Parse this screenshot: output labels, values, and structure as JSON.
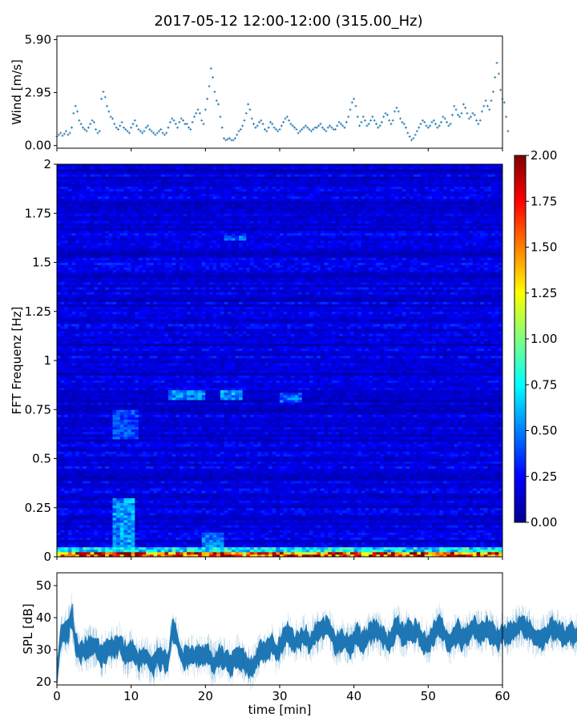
{
  "title": "2017-05-12 12:00-12:00 (315.00_Hz)",
  "colors": {
    "series": "#1f77b4",
    "colormap": "jet"
  },
  "chart_data": [
    {
      "id": "wind",
      "type": "scatter",
      "ylabel": "Wind [m/s]",
      "xlim": [
        0,
        60
      ],
      "ylim": [
        -0.15,
        6.1
      ],
      "yticks": [
        0.0,
        2.95,
        5.9
      ],
      "ytick_labels": [
        "0.00",
        "2.95",
        "5.90"
      ],
      "marker": "+",
      "x_step": 0.25,
      "series": [
        {
          "values": [
            0.5,
            0.6,
            0.7,
            0.55,
            0.65,
            0.8,
            0.6,
            0.7,
            1.0,
            1.8,
            2.2,
            1.9,
            1.4,
            1.2,
            1.0,
            0.9,
            0.8,
            1.0,
            1.2,
            1.4,
            1.3,
            0.9,
            0.7,
            0.8,
            2.6,
            3.0,
            2.7,
            2.2,
            1.9,
            1.6,
            1.5,
            1.2,
            1.0,
            0.9,
            1.1,
            1.3,
            1.0,
            0.9,
            0.8,
            0.7,
            1.0,
            1.2,
            1.4,
            1.1,
            0.9,
            0.8,
            0.7,
            0.8,
            1.0,
            1.1,
            0.9,
            0.8,
            0.7,
            0.6,
            0.7,
            0.8,
            0.9,
            0.7,
            0.6,
            0.7,
            1.0,
            1.3,
            1.5,
            1.4,
            1.2,
            1.0,
            1.3,
            1.5,
            1.4,
            1.2,
            1.2,
            1.0,
            0.9,
            1.3,
            1.6,
            1.8,
            2.0,
            1.8,
            1.4,
            1.2,
            2.0,
            2.6,
            3.3,
            4.3,
            3.8,
            3.0,
            2.5,
            2.3,
            1.6,
            1.0,
            0.4,
            0.3,
            0.35,
            0.4,
            0.3,
            0.3,
            0.4,
            0.6,
            0.8,
            0.9,
            1.1,
            1.4,
            1.8,
            2.3,
            2.0,
            1.5,
            1.2,
            1.0,
            1.1,
            1.3,
            1.4,
            1.2,
            0.9,
            0.8,
            1.0,
            1.3,
            1.2,
            1.0,
            0.9,
            0.8,
            0.9,
            1.1,
            1.3,
            1.5,
            1.6,
            1.4,
            1.2,
            1.1,
            1.0,
            0.9,
            0.7,
            0.8,
            0.9,
            1.0,
            1.1,
            1.0,
            0.9,
            0.8,
            0.9,
            1.0,
            1.0,
            1.1,
            1.2,
            1.0,
            0.9,
            0.8,
            1.0,
            1.1,
            1.0,
            0.9,
            0.9,
            1.1,
            1.3,
            1.2,
            1.1,
            1.0,
            1.3,
            1.6,
            2.0,
            2.4,
            2.6,
            2.2,
            1.6,
            1.1,
            1.3,
            1.6,
            1.4,
            1.1,
            1.2,
            1.4,
            1.6,
            1.4,
            1.2,
            1.0,
            1.1,
            1.3,
            1.6,
            1.8,
            1.7,
            1.4,
            1.2,
            1.4,
            1.9,
            2.1,
            1.9,
            1.5,
            1.3,
            1.2,
            1.0,
            0.7,
            0.5,
            0.3,
            0.4,
            0.6,
            0.8,
            1.0,
            1.2,
            1.4,
            1.3,
            1.1,
            1.0,
            1.1,
            1.3,
            1.4,
            1.2,
            1.0,
            1.1,
            1.3,
            1.6,
            1.5,
            1.3,
            1.1,
            1.2,
            1.7,
            2.2,
            2.0,
            1.7,
            1.6,
            1.8,
            2.3,
            2.1,
            1.8,
            1.5,
            1.6,
            1.8,
            1.7,
            1.4,
            1.2,
            1.4,
            1.9,
            2.2,
            2.5,
            2.2,
            2.0,
            2.5,
            3.0,
            3.8,
            4.6,
            4.0,
            3.1,
            2.6,
            2.4,
            1.6,
            0.8
          ]
        }
      ]
    },
    {
      "id": "spectrogram",
      "type": "heatmap",
      "ylabel": "FFT Frequenz [Hz]",
      "xlim": [
        0,
        60
      ],
      "ylim": [
        0,
        2
      ],
      "yticks": [
        0,
        0.25,
        0.5,
        0.75,
        1,
        1.25,
        1.5,
        1.75,
        2
      ],
      "ytick_labels": [
        "0",
        "0.25",
        "0.5",
        "0.75",
        "1",
        "1.25",
        "1.5",
        "1.75",
        "2"
      ],
      "colorbar": {
        "min": 0,
        "max": 2,
        "ticks": [
          0,
          0.25,
          0.5,
          0.75,
          1,
          1.25,
          1.5,
          1.75,
          2
        ],
        "tick_labels": [
          "0.00",
          "0.25",
          "0.50",
          "0.75",
          "1.00",
          "1.25",
          "1.50",
          "1.75",
          "2.00"
        ]
      },
      "time_bins": 120,
      "freq_bins": 160,
      "background_level": 0.18,
      "features": [
        {
          "t": [
            7.5,
            10.5
          ],
          "f": [
            0.02,
            0.3
          ],
          "level": 0.6
        },
        {
          "t": [
            7.5,
            11.0
          ],
          "f": [
            0.6,
            0.75
          ],
          "level": 0.42
        },
        {
          "t": [
            19.5,
            22.5
          ],
          "f": [
            0.02,
            0.12
          ],
          "level": 0.55
        },
        {
          "t": [
            15.0,
            20.0
          ],
          "f": [
            0.8,
            0.85
          ],
          "level": 0.55
        },
        {
          "t": [
            22.0,
            25.0
          ],
          "f": [
            0.8,
            0.85
          ],
          "level": 0.6
        },
        {
          "t": [
            30.0,
            33.0
          ],
          "f": [
            0.79,
            0.84
          ],
          "level": 0.5
        },
        {
          "t": [
            22.5,
            25.5
          ],
          "f": [
            1.61,
            1.64
          ],
          "level": 0.5
        },
        {
          "t": [
            0.0,
            60.0
          ],
          "f": [
            0.0,
            0.02
          ],
          "level": 1.8
        },
        {
          "t": [
            0.0,
            60.0
          ],
          "f": [
            0.02,
            0.05
          ],
          "level": 0.8
        }
      ]
    },
    {
      "id": "spl",
      "type": "line",
      "ylabel": "SPL [dB]",
      "xlabel": "time [min]",
      "xlim": [
        0,
        60
      ],
      "ylim": [
        19,
        54
      ],
      "xticks": [
        0,
        10,
        20,
        30,
        40,
        50,
        60
      ],
      "xtick_labels": [
        "0",
        "10",
        "20",
        "30",
        "40",
        "50",
        "60"
      ],
      "yticks": [
        20,
        30,
        40,
        50
      ],
      "ytick_labels": [
        "20",
        "30",
        "40",
        "50"
      ],
      "x_step": 0.5,
      "series": [
        {
          "values": [
            22,
            34,
            35,
            36,
            41,
            32,
            29,
            30,
            30,
            31,
            31,
            30,
            28,
            29,
            31,
            30,
            31,
            32,
            29,
            28,
            30,
            29,
            26,
            28,
            28,
            26,
            25,
            28,
            27,
            27,
            26,
            36,
            35,
            30,
            27,
            28,
            28,
            28,
            29,
            28,
            29,
            28,
            25,
            27,
            28,
            27,
            27,
            25,
            28,
            28,
            27,
            26,
            24,
            25,
            28,
            30,
            29,
            30,
            32,
            29,
            31,
            33,
            35,
            34,
            32,
            33,
            34,
            34,
            32,
            34,
            35,
            36,
            37,
            38,
            35,
            31,
            32,
            33,
            32,
            31,
            33,
            35,
            32,
            33,
            35,
            36,
            36,
            35,
            34,
            32,
            33,
            37,
            37,
            34,
            35,
            36,
            35,
            36,
            34,
            32,
            32,
            34,
            36,
            38,
            36,
            33,
            32,
            34,
            36,
            33,
            34,
            35,
            37,
            36,
            35,
            36,
            37,
            35,
            34,
            33,
            35,
            34,
            35,
            36,
            37,
            38,
            37,
            36,
            35,
            34,
            33,
            34,
            35,
            37,
            36,
            36,
            35,
            34,
            36,
            35,
            34,
            37,
            38,
            36,
            34,
            33,
            34,
            36,
            38,
            38,
            35,
            36,
            36,
            37,
            38,
            38,
            37,
            36,
            35,
            36,
            37,
            38,
            37,
            36,
            35,
            36,
            36,
            37,
            38,
            39,
            38,
            37,
            36,
            35,
            36,
            36,
            37,
            38,
            37,
            37,
            36,
            37,
            38,
            39,
            37,
            38,
            38,
            36,
            36,
            35,
            36,
            37,
            34,
            33,
            34,
            33,
            36,
            37,
            39,
            41,
            40,
            38,
            37,
            36,
            36,
            37,
            38,
            36
          ]
        }
      ]
    }
  ]
}
